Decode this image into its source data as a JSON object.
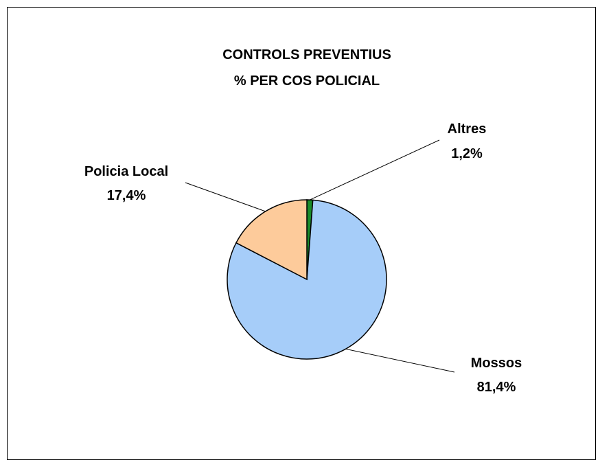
{
  "chart_data": {
    "type": "pie",
    "title": [
      "CONTROLS PREVENTIUS",
      "% PER COS POLICIAL"
    ],
    "series": [
      {
        "name": "",
        "slices": [
          {
            "label": "Altres",
            "value": 1.2,
            "value_text": "1,2%",
            "color": "#1a8c2a"
          },
          {
            "label": "Mossos",
            "value": 81.4,
            "value_text": "81,4%",
            "color": "#a6cdf9"
          },
          {
            "label": "Policia Local",
            "value": 17.4,
            "value_text": "17,4%",
            "color": "#fdcb9b"
          }
        ]
      }
    ],
    "start_angle": "top, clockwise",
    "legend": "none",
    "label_style": "outside with leader lines"
  }
}
